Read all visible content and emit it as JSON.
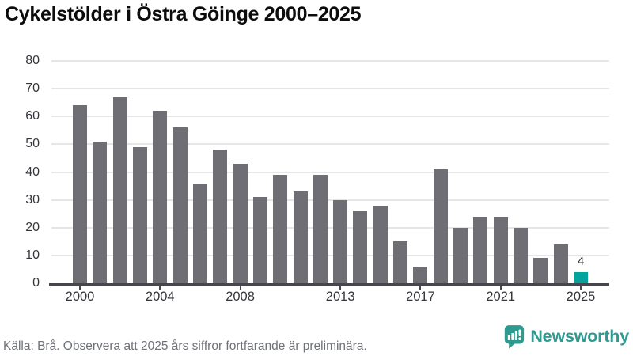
{
  "title": "Cykelstölder i Östra Göinge 2000–2025",
  "chart_data": {
    "type": "bar",
    "title": "Cykelstölder i Östra Göinge 2000–2025",
    "categories": [
      "2000",
      "2001",
      "2002",
      "2003",
      "2004",
      "2005",
      "2006",
      "2007",
      "2008",
      "2009",
      "2010",
      "2011",
      "2012",
      "2013",
      "2014",
      "2015",
      "2016",
      "2017",
      "2018",
      "2019",
      "2020",
      "2021",
      "2022",
      "2023",
      "2024",
      "2025"
    ],
    "values": [
      64,
      51,
      67,
      49,
      62,
      56,
      36,
      48,
      43,
      31,
      39,
      33,
      39,
      30,
      26,
      28,
      15,
      6,
      41,
      20,
      24,
      24,
      20,
      9,
      14,
      4
    ],
    "xlabel": "",
    "ylabel": "",
    "ylim": [
      0,
      80
    ],
    "yticks": [
      0,
      10,
      20,
      30,
      40,
      50,
      60,
      70,
      80
    ],
    "xtick_labels": [
      "2000",
      "2004",
      "2008",
      "2013",
      "2017",
      "2021",
      "2025"
    ],
    "grid": "horizontal",
    "legend": "none",
    "bar_color": "#6f6e74",
    "axis_color": "#46464c",
    "highlight": {
      "category": "2025",
      "color": "#00a49c",
      "label": "4"
    }
  },
  "footer": {
    "source": "Källa: Brå. Observera att 2025 års siffror fortfarande är preliminära.",
    "brand": "Newsworthy",
    "brand_color": "#2e9a90"
  }
}
